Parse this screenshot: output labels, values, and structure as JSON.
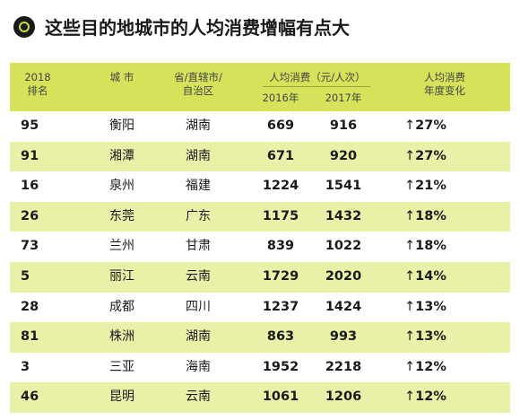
{
  "title": "这些目的地城市的人均消费增幅有点大",
  "header": {
    "rank_year": "2018",
    "rank": "排名",
    "city": "城 市",
    "prov_line1": "省/直辖市/",
    "prov_line2": "自治区",
    "spend": "人均消费（元/人次）",
    "y2016": "2016年",
    "y2017": "2017年",
    "change_line1": "人均消费",
    "change_line2": "年度变化"
  },
  "colors": {
    "header_bg": "#d5e25a",
    "alt_row": "#e9f1a8",
    "ring": "#c8dc3c"
  },
  "rows": [
    {
      "rank": "95",
      "city": "衡阳",
      "prov": "湖南",
      "v2016": "669",
      "v2017": "916",
      "change": "27%"
    },
    {
      "rank": "91",
      "city": "湘潭",
      "prov": "湖南",
      "v2016": "671",
      "v2017": "920",
      "change": "27%"
    },
    {
      "rank": "16",
      "city": "泉州",
      "prov": "福建",
      "v2016": "1224",
      "v2017": "1541",
      "change": "21%"
    },
    {
      "rank": "26",
      "city": "东莞",
      "prov": "广东",
      "v2016": "1175",
      "v2017": "1432",
      "change": "18%"
    },
    {
      "rank": "73",
      "city": "兰州",
      "prov": "甘肃",
      "v2016": "839",
      "v2017": "1022",
      "change": "18%"
    },
    {
      "rank": "5",
      "city": "丽江",
      "prov": "云南",
      "v2016": "1729",
      "v2017": "2020",
      "change": "14%"
    },
    {
      "rank": "28",
      "city": "成都",
      "prov": "四川",
      "v2016": "1237",
      "v2017": "1424",
      "change": "13%"
    },
    {
      "rank": "81",
      "city": "株洲",
      "prov": "湖南",
      "v2016": "863",
      "v2017": "993",
      "change": "13%"
    },
    {
      "rank": "3",
      "city": "三亚",
      "prov": "海南",
      "v2016": "1952",
      "v2017": "2218",
      "change": "12%"
    },
    {
      "rank": "46",
      "city": "昆明",
      "prov": "云南",
      "v2016": "1061",
      "v2017": "1206",
      "change": "12%"
    }
  ],
  "arrow_icon": "up-arrow-icon",
  "arrow": "↑"
}
